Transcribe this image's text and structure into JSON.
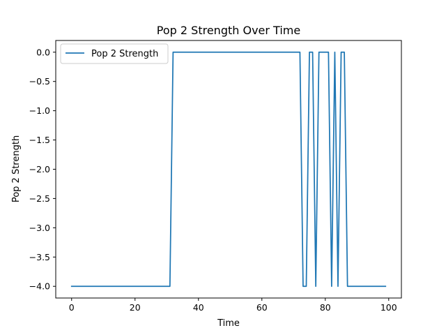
{
  "chart_data": {
    "type": "line",
    "title": "Pop 2 Strength Over Time",
    "xlabel": "Time",
    "ylabel": "Pop 2 Strength",
    "xlim": [
      -5,
      104
    ],
    "ylim": [
      -4.2,
      0.2
    ],
    "xticks": [
      0,
      20,
      40,
      60,
      80,
      100
    ],
    "yticks": [
      0.0,
      -0.5,
      -1.0,
      -1.5,
      -2.0,
      -2.5,
      -3.0,
      -3.5,
      -4.0
    ],
    "ytick_labels": [
      "0.0",
      "−0.5",
      "−1.0",
      "−1.5",
      "−2.0",
      "−2.5",
      "−3.0",
      "−3.5",
      "−4.0"
    ],
    "grid": false,
    "legend": {
      "placement": "top-left"
    },
    "series": [
      {
        "name": "Pop 2 Strength",
        "color": "#1f77b4",
        "x": [
          0,
          31,
          32,
          72,
          73,
          74,
          75,
          76,
          77,
          78,
          79,
          80,
          81,
          82,
          83,
          84,
          85,
          86,
          87,
          99
        ],
        "y": [
          -4,
          -4,
          0,
          0,
          -4,
          -4,
          0,
          0,
          -4,
          0,
          0,
          0,
          0,
          -4,
          0,
          -4,
          0,
          0,
          -4,
          -4
        ]
      }
    ]
  }
}
